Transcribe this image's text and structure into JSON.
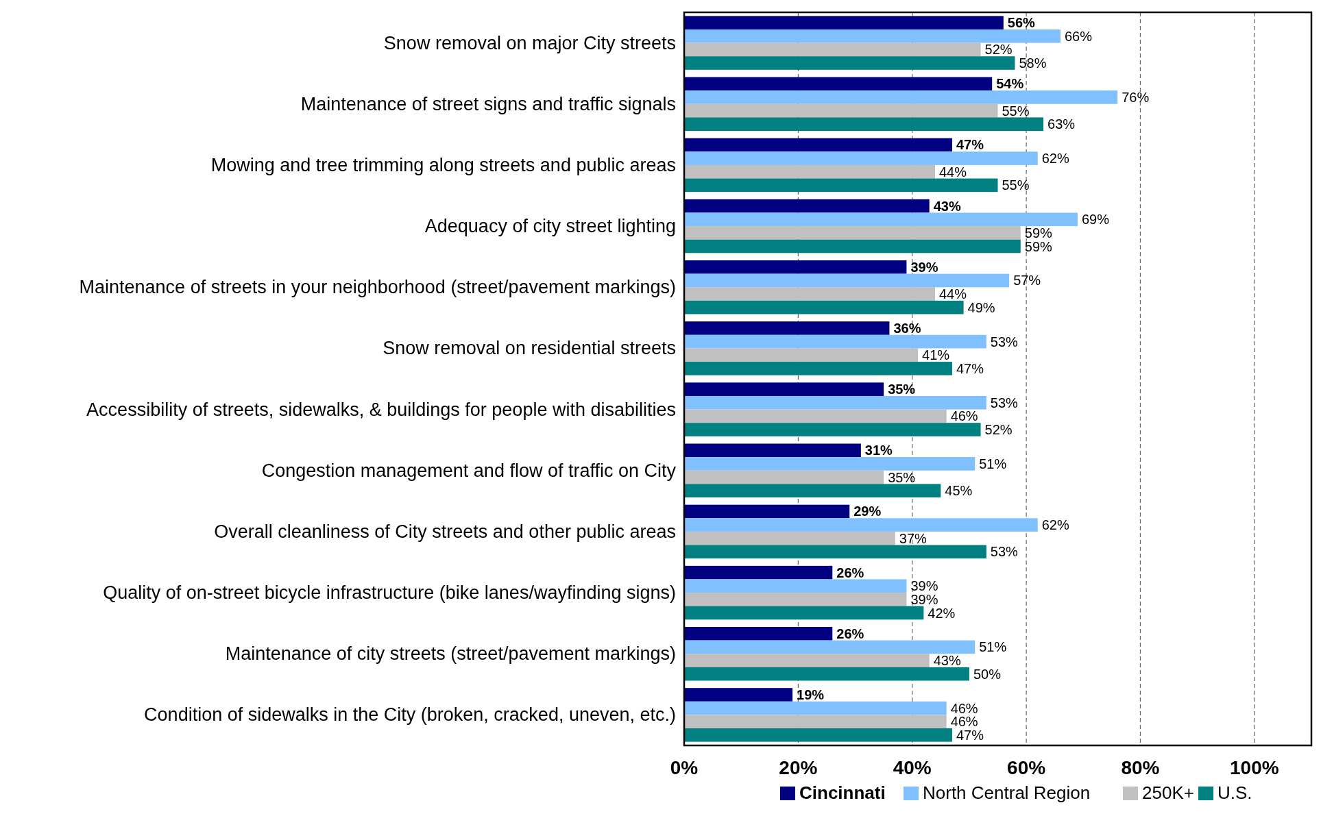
{
  "chart_data": {
    "type": "bar",
    "orientation": "horizontal",
    "categories": [
      "Snow removal on major City streets",
      "Maintenance of street signs and traffic signals",
      "Mowing and tree trimming along streets and public areas",
      "Adequacy of city street lighting",
      "Maintenance of streets in your neighborhood (street/pavement markings)",
      "Snow removal on residential streets",
      "Accessibility of streets, sidewalks, & buildings for people with disabilities",
      "Congestion management and flow of traffic on City",
      "Overall cleanliness of City streets and other public areas",
      "Quality of on-street bicycle infrastructure (bike lanes/wayfinding signs)",
      "Maintenance of city streets (street/pavement markings)",
      "Condition of sidewalks in the City (broken, cracked, uneven, etc.)"
    ],
    "series": [
      {
        "name": "Cincinnati",
        "color": "#000080",
        "values": [
          56,
          54,
          47,
          43,
          39,
          36,
          35,
          31,
          29,
          26,
          26,
          19
        ],
        "value_labels": [
          "56%",
          "54%",
          "47%",
          "43%",
          "39%",
          "36%",
          "35%",
          "31%",
          "29%",
          "26%",
          "26%",
          "19%"
        ]
      },
      {
        "name": "North Central Region",
        "color": "#80c0ff",
        "values": [
          66,
          76,
          62,
          69,
          57,
          53,
          53,
          51,
          62,
          39,
          51,
          46
        ],
        "value_labels": [
          "66%",
          "76%",
          "62%",
          "69%",
          "57%",
          "53%",
          "53%",
          "51%",
          "62%",
          "39%",
          "51%",
          "46%"
        ]
      },
      {
        "name": "250K+",
        "color": "#c0c0c0",
        "values": [
          52,
          55,
          44,
          59,
          44,
          41,
          46,
          35,
          37,
          39,
          43,
          46
        ],
        "value_labels": [
          "52%",
          "55%",
          "44%",
          "59%",
          "44%",
          "41%",
          "46%",
          "35%",
          "37%",
          "39%",
          "43%",
          "46%"
        ]
      },
      {
        "name": "U.S.",
        "color": "#008080",
        "values": [
          58,
          63,
          55,
          59,
          49,
          47,
          52,
          45,
          53,
          42,
          50,
          47
        ],
        "value_labels": [
          "58%",
          "63%",
          "55%",
          "59%",
          "49%",
          "47%",
          "52%",
          "45%",
          "53%",
          "42%",
          "50%",
          "47%"
        ]
      }
    ],
    "xlim": [
      0,
      110
    ],
    "xticks": [
      {
        "value": 0,
        "label": "0%"
      },
      {
        "value": 20,
        "label": "20%"
      },
      {
        "value": 40,
        "label": "40%"
      },
      {
        "value": 60,
        "label": "60%"
      },
      {
        "value": 80,
        "label": "80%"
      },
      {
        "value": 100,
        "label": "100%"
      }
    ],
    "grid": "x",
    "legend": "bottom right"
  }
}
